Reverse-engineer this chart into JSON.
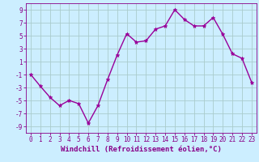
{
  "x": [
    0,
    1,
    2,
    3,
    4,
    5,
    6,
    7,
    8,
    9,
    10,
    11,
    12,
    13,
    14,
    15,
    16,
    17,
    18,
    19,
    20,
    21,
    22,
    23
  ],
  "y": [
    -1,
    -2.8,
    -4.5,
    -5.8,
    -5.0,
    -5.5,
    -8.5,
    -5.8,
    -1.8,
    2.0,
    5.3,
    4.0,
    4.2,
    6.0,
    6.5,
    9.0,
    7.5,
    6.5,
    6.5,
    7.8,
    5.2,
    2.2,
    1.5,
    -2.2
  ],
  "line_color": "#990099",
  "marker": "*",
  "bg_color": "#cceeff",
  "grid_color": "#aacccc",
  "xlabel": "Windchill (Refroidissement éolien,°C)",
  "xlabel_color": "#880088",
  "tick_color": "#880088",
  "xlim": [
    -0.5,
    23.5
  ],
  "ylim": [
    -10,
    10
  ],
  "yticks": [
    -9,
    -7,
    -5,
    -3,
    -1,
    1,
    3,
    5,
    7,
    9
  ],
  "xticks": [
    0,
    1,
    2,
    3,
    4,
    5,
    6,
    7,
    8,
    9,
    10,
    11,
    12,
    13,
    14,
    15,
    16,
    17,
    18,
    19,
    20,
    21,
    22,
    23
  ],
  "tick_fontsize": 5.5,
  "xlabel_fontsize": 6.5,
  "linewidth": 1.0,
  "markersize": 3.5
}
